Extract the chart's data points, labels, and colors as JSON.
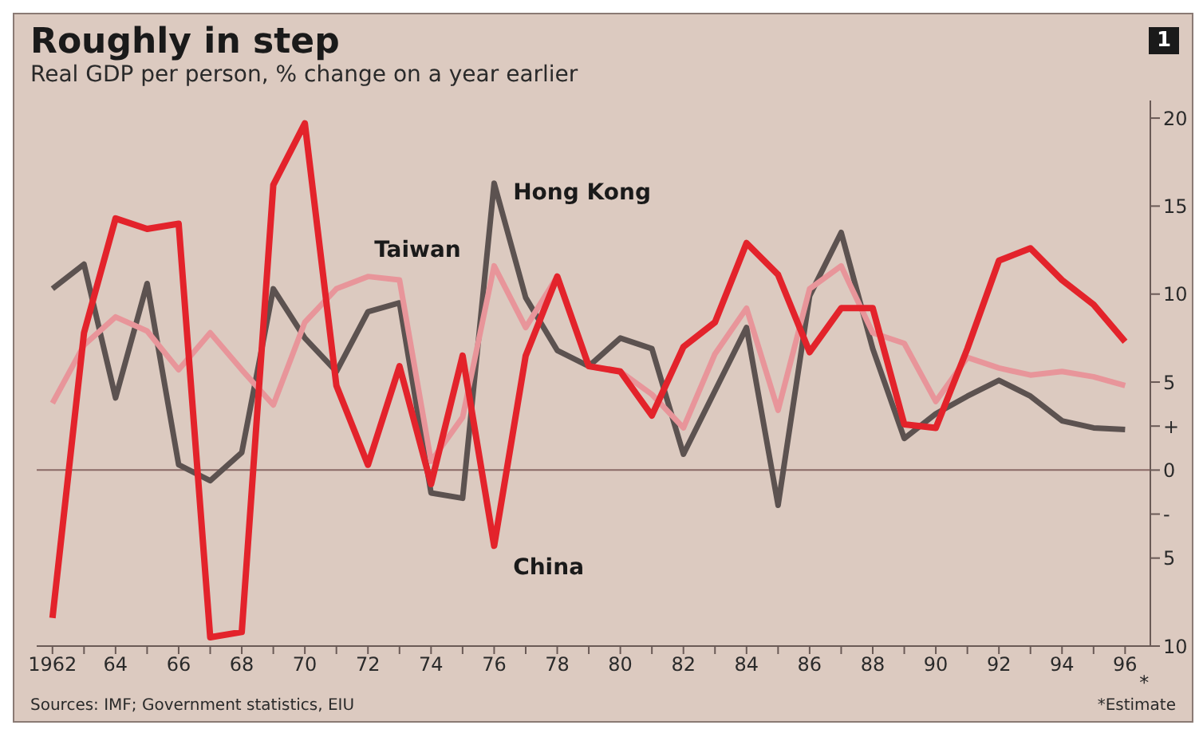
{
  "chart_data": {
    "type": "line",
    "title": "Roughly in step",
    "subtitle": "Real GDP per person, % change on a year earlier",
    "x": [
      1962,
      1963,
      1964,
      1965,
      1966,
      1967,
      1968,
      1969,
      1970,
      1971,
      1972,
      1973,
      1974,
      1975,
      1976,
      1977,
      1978,
      1979,
      1980,
      1981,
      1982,
      1983,
      1984,
      1985,
      1986,
      1987,
      1988,
      1989,
      1990,
      1991,
      1992,
      1993,
      1994,
      1995,
      1996
    ],
    "series": [
      {
        "name": "Hong Kong",
        "color": "#5c5250",
        "values": [
          10.3,
          11.7,
          4.1,
          10.6,
          0.3,
          -0.6,
          1.0,
          10.3,
          7.5,
          5.6,
          9.0,
          9.5,
          -1.3,
          -1.6,
          16.3,
          9.8,
          6.8,
          5.9,
          7.5,
          6.9,
          0.9,
          4.5,
          8.1,
          -2.0,
          9.9,
          13.5,
          6.9,
          1.8,
          3.2,
          4.2,
          5.1,
          4.2,
          2.8,
          2.4,
          2.3
        ]
      },
      {
        "name": "Taiwan",
        "color": "#e8959a",
        "values": [
          3.8,
          7.1,
          8.7,
          7.9,
          5.7,
          7.8,
          5.7,
          3.7,
          8.4,
          10.3,
          11.0,
          10.8,
          0.5,
          3.0,
          11.6,
          8.1,
          11.0,
          5.9,
          5.6,
          4.3,
          2.4,
          6.6,
          9.2,
          3.4,
          10.3,
          11.6,
          7.8,
          7.2,
          3.9,
          6.4,
          5.8,
          5.4,
          5.6,
          5.3,
          4.8
        ]
      },
      {
        "name": "China",
        "color": "#e3232b",
        "values": [
          -8.4,
          7.8,
          14.3,
          13.7,
          14.0,
          -9.5,
          -9.2,
          16.2,
          19.7,
          4.8,
          0.3,
          5.9,
          -0.8,
          6.5,
          -4.3,
          6.5,
          11.0,
          5.9,
          5.6,
          3.1,
          7.0,
          8.4,
          12.9,
          11.1,
          6.7,
          9.2,
          9.2,
          2.6,
          2.4,
          6.9,
          11.9,
          12.6,
          10.8,
          9.4,
          7.3
        ]
      }
    ],
    "xlim": [
      1961.5,
      1996.8
    ],
    "xticks": [
      {
        "value": 1962,
        "label": "1962"
      },
      {
        "value": 1963,
        "label": null
      },
      {
        "value": 1964,
        "label": "64"
      },
      {
        "value": 1965,
        "label": null
      },
      {
        "value": 1966,
        "label": "66"
      },
      {
        "value": 1967,
        "label": null
      },
      {
        "value": 1968,
        "label": "68"
      },
      {
        "value": 1969,
        "label": null
      },
      {
        "value": 1970,
        "label": "70"
      },
      {
        "value": 1971,
        "label": null
      },
      {
        "value": 1972,
        "label": "72"
      },
      {
        "value": 1973,
        "label": null
      },
      {
        "value": 1974,
        "label": "74"
      },
      {
        "value": 1975,
        "label": null
      },
      {
        "value": 1976,
        "label": "76"
      },
      {
        "value": 1977,
        "label": null
      },
      {
        "value": 1978,
        "label": "78"
      },
      {
        "value": 1979,
        "label": null
      },
      {
        "value": 1980,
        "label": "80"
      },
      {
        "value": 1981,
        "label": null
      },
      {
        "value": 1982,
        "label": "82"
      },
      {
        "value": 1983,
        "label": null
      },
      {
        "value": 1984,
        "label": "84"
      },
      {
        "value": 1985,
        "label": null
      },
      {
        "value": 1986,
        "label": "86"
      },
      {
        "value": 1987,
        "label": null
      },
      {
        "value": 1988,
        "label": "88"
      },
      {
        "value": 1989,
        "label": null
      },
      {
        "value": 1990,
        "label": "90"
      },
      {
        "value": 1991,
        "label": null
      },
      {
        "value": 1992,
        "label": "92"
      },
      {
        "value": 1993,
        "label": null
      },
      {
        "value": 1994,
        "label": "94"
      },
      {
        "value": 1995,
        "label": null
      },
      {
        "value": 1996,
        "label": "96"
      }
    ],
    "ylim": [
      -10,
      21
    ],
    "yticks": [
      20,
      15,
      10,
      5,
      {
        "value": 2.5,
        "label": "+"
      },
      0,
      {
        "value": -2.5,
        "label": "-"
      },
      {
        "value": -5,
        "label": "5"
      },
      {
        "value": -10,
        "label": "10"
      }
    ],
    "ref_lines": [
      {
        "axis": "y",
        "value": 0,
        "color": "#8a6a66"
      }
    ],
    "grid": false,
    "legend": false,
    "marker": "none",
    "line_style": "solid",
    "annotations": [
      "1",
      "*",
      "Sources: IMF; Government statistics, EIU",
      "*Estimate"
    ]
  }
}
